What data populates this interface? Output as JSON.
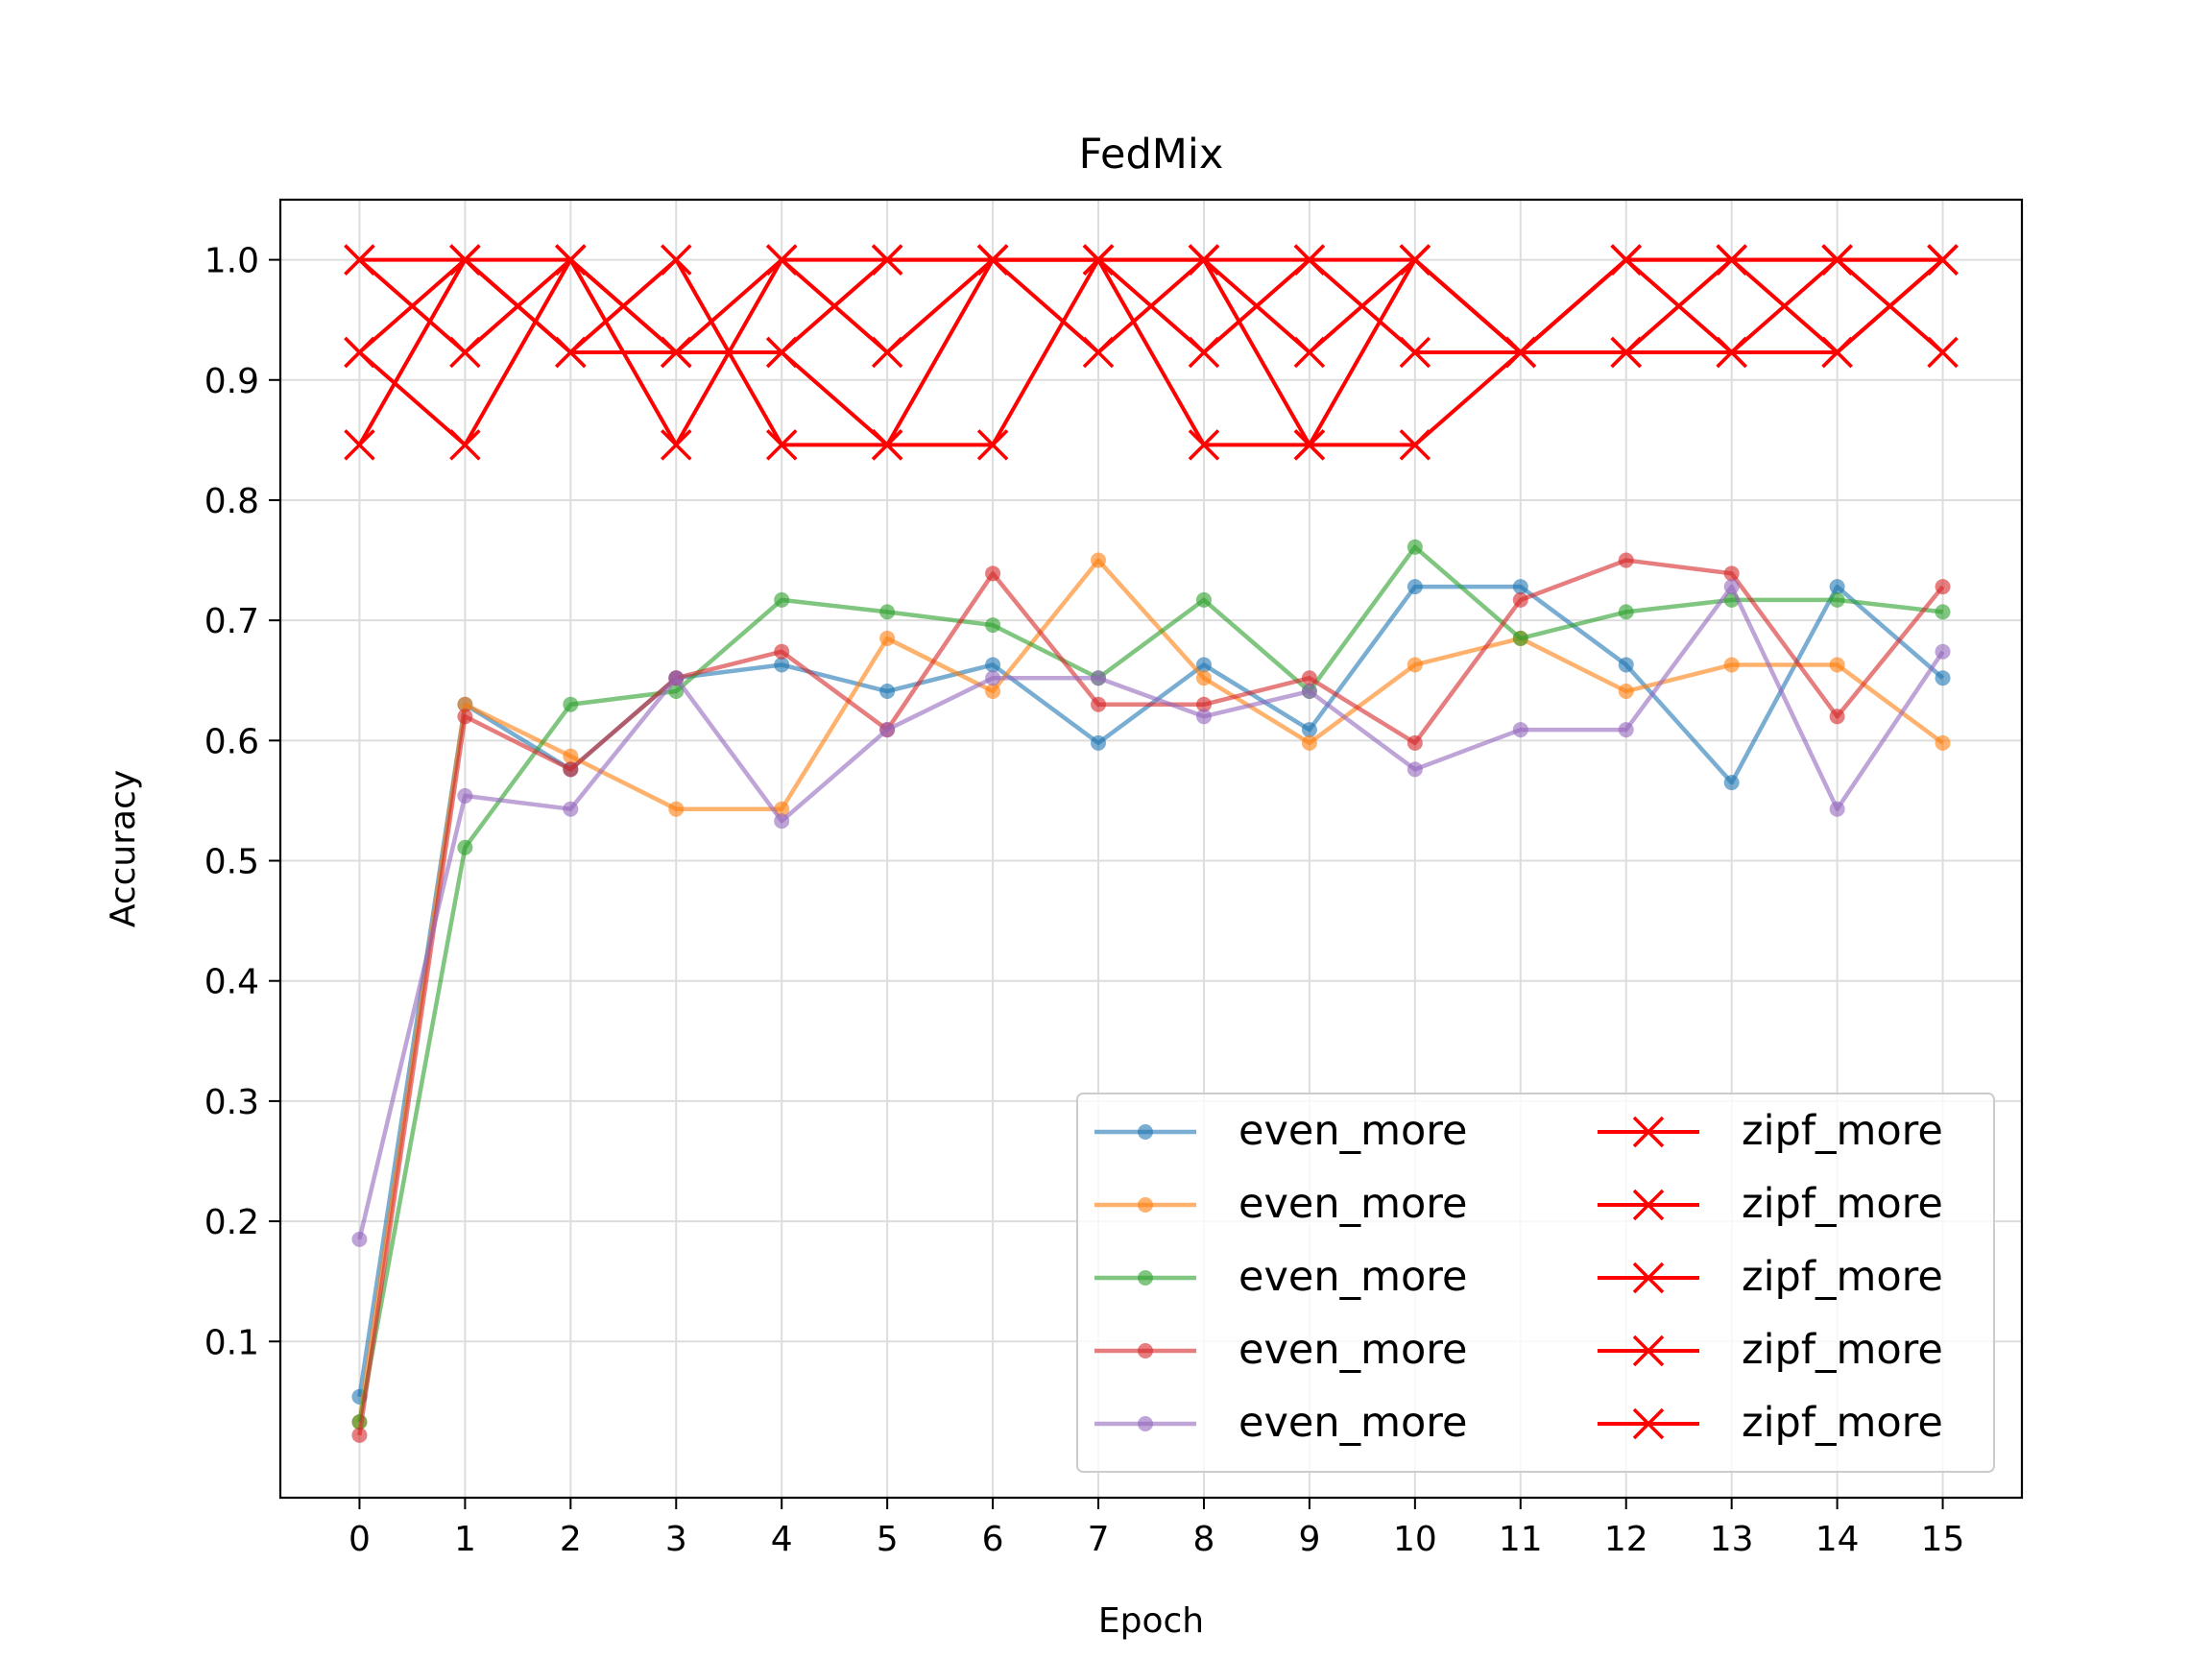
{
  "chart_data": {
    "type": "line",
    "title": "FedMix",
    "xlabel": "Epoch",
    "ylabel": "Accuracy",
    "xlim": [
      -0.75,
      15.75
    ],
    "ylim": [
      -0.03,
      1.05
    ],
    "x": [
      0,
      1,
      2,
      3,
      4,
      5,
      6,
      7,
      8,
      9,
      10,
      11,
      12,
      13,
      14,
      15
    ],
    "x_tick_labels": [
      "0",
      "1",
      "2",
      "3",
      "4",
      "5",
      "6",
      "7",
      "8",
      "9",
      "10",
      "11",
      "12",
      "13",
      "14",
      "15"
    ],
    "y_ticks": [
      0.1,
      0.2,
      0.3,
      0.4,
      0.5,
      0.6,
      0.7,
      0.8,
      0.9,
      1.0
    ],
    "y_tick_labels": [
      "0.1",
      "0.2",
      "0.3",
      "0.4",
      "0.5",
      "0.6",
      "0.7",
      "0.8",
      "0.9",
      "1.0"
    ],
    "grid": true,
    "legend_placement": "lower-right",
    "legend_columns": 2,
    "series": [
      {
        "name": "even_more",
        "color": "#1f77b4",
        "marker": "dot",
        "alpha": 0.6,
        "values": [
          0.054,
          0.63,
          0.576,
          0.652,
          0.663,
          0.641,
          0.663,
          0.598,
          0.663,
          0.609,
          0.728,
          0.728,
          0.663,
          0.565,
          0.728,
          0.652
        ]
      },
      {
        "name": "even_more",
        "color": "#ff7f0e",
        "marker": "dot",
        "alpha": 0.6,
        "values": [
          0.033,
          0.63,
          0.587,
          0.543,
          0.543,
          0.685,
          0.641,
          0.75,
          0.652,
          0.598,
          0.663,
          0.685,
          0.641,
          0.663,
          0.663,
          0.598
        ]
      },
      {
        "name": "even_more",
        "color": "#2ca02c",
        "marker": "dot",
        "alpha": 0.6,
        "values": [
          0.033,
          0.511,
          0.63,
          0.641,
          0.717,
          0.707,
          0.696,
          0.652,
          0.717,
          0.641,
          0.761,
          0.685,
          0.707,
          0.717,
          0.717,
          0.707
        ]
      },
      {
        "name": "even_more",
        "color": "#d62728",
        "marker": "dot",
        "alpha": 0.6,
        "values": [
          0.022,
          0.62,
          0.576,
          0.652,
          0.674,
          0.609,
          0.739,
          0.63,
          0.63,
          0.652,
          0.598,
          0.717,
          0.75,
          0.739,
          0.62,
          0.728
        ]
      },
      {
        "name": "even_more",
        "color": "#9467bd",
        "marker": "dot",
        "alpha": 0.6,
        "values": [
          0.185,
          0.554,
          0.543,
          0.652,
          0.533,
          0.609,
          0.652,
          0.652,
          0.62,
          0.641,
          0.576,
          0.609,
          0.609,
          0.728,
          0.543,
          0.674
        ]
      },
      {
        "name": "zipf_more",
        "color": "#ff0000",
        "marker": "x",
        "alpha": 1,
        "values": [
          1.0,
          1.0,
          1.0,
          0.923,
          0.923,
          1.0,
          1.0,
          1.0,
          1.0,
          1.0,
          1.0,
          0.923,
          1.0,
          1.0,
          1.0,
          1.0
        ]
      },
      {
        "name": "zipf_more",
        "color": "#ff0000",
        "marker": "x",
        "alpha": 1,
        "values": [
          0.923,
          1.0,
          0.923,
          1.0,
          0.846,
          0.846,
          1.0,
          1.0,
          0.923,
          1.0,
          0.923,
          0.923,
          0.923,
          0.923,
          0.923,
          1.0
        ]
      },
      {
        "name": "zipf_more",
        "color": "#ff0000",
        "marker": "x",
        "alpha": 1,
        "values": [
          0.846,
          1.0,
          0.923,
          0.923,
          1.0,
          1.0,
          1.0,
          0.923,
          1.0,
          0.923,
          1.0,
          0.923,
          1.0,
          0.923,
          1.0,
          0.923
        ]
      },
      {
        "name": "zipf_more",
        "color": "#ff0000",
        "marker": "x",
        "alpha": 1,
        "values": [
          1.0,
          0.923,
          1.0,
          0.846,
          1.0,
          0.923,
          1.0,
          1.0,
          0.846,
          0.846,
          1.0,
          0.923,
          1.0,
          1.0,
          1.0,
          1.0
        ]
      },
      {
        "name": "zipf_more",
        "color": "#ff0000",
        "marker": "x",
        "alpha": 1,
        "values": [
          0.923,
          0.846,
          1.0,
          0.923,
          0.923,
          0.846,
          0.846,
          1.0,
          1.0,
          0.846,
          0.846,
          0.923,
          0.923,
          1.0,
          0.923,
          1.0
        ]
      }
    ]
  }
}
